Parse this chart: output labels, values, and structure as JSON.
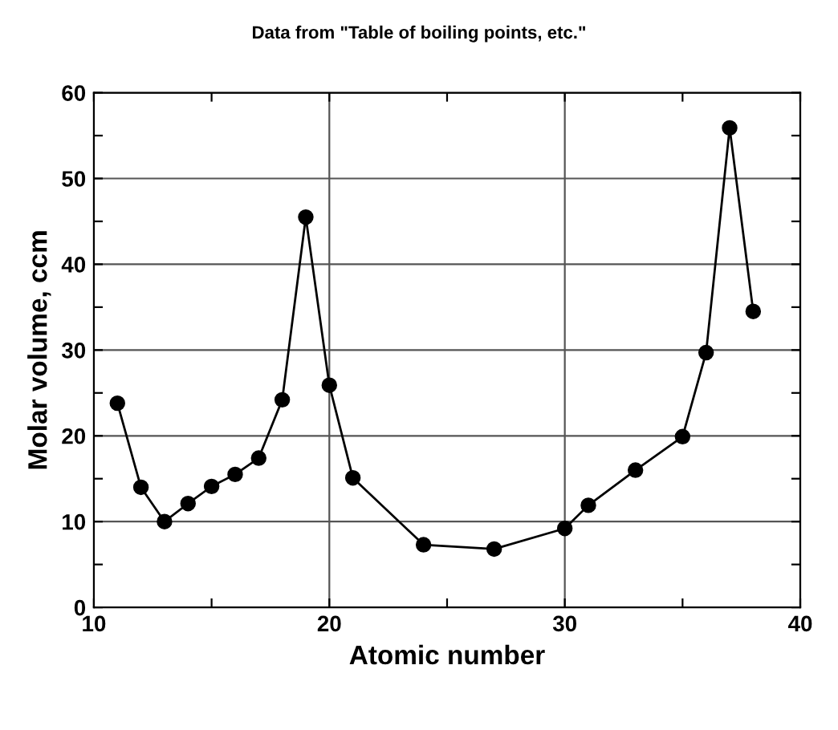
{
  "chart_data": {
    "type": "line",
    "title": "Data from \"Table of boiling points, etc.\"",
    "xlabel": "Atomic number",
    "ylabel": "Molar volume, ccm",
    "x": [
      11,
      12,
      13,
      14,
      15,
      16,
      17,
      18,
      19,
      20,
      21,
      24,
      27,
      30,
      31,
      33,
      35,
      36,
      37,
      38
    ],
    "series": [
      {
        "color": "#000000",
        "values": [
          23.8,
          14.0,
          10.0,
          12.1,
          14.1,
          15.5,
          17.4,
          24.2,
          45.5,
          25.9,
          15.1,
          7.3,
          6.8,
          9.2,
          11.9,
          16.0,
          19.9,
          29.7,
          55.9,
          34.5
        ]
      }
    ],
    "xlim": [
      10,
      40
    ],
    "xticks": [
      10,
      {
        "value": 15,
        "label": null
      },
      20,
      {
        "value": 25,
        "label": null
      },
      30,
      {
        "value": 35,
        "label": null
      },
      40
    ],
    "ylim": [
      0,
      60
    ],
    "yticks": [
      0,
      {
        "value": 5,
        "label": null
      },
      10,
      {
        "value": 15,
        "label": null
      },
      20,
      {
        "value": 25,
        "label": null
      },
      30,
      {
        "value": 35,
        "label": null
      },
      40,
      {
        "value": 45,
        "label": null
      },
      50,
      {
        "value": 55,
        "label": null
      },
      60
    ],
    "grid": true,
    "marker": "circle",
    "line_style": "solid"
  }
}
